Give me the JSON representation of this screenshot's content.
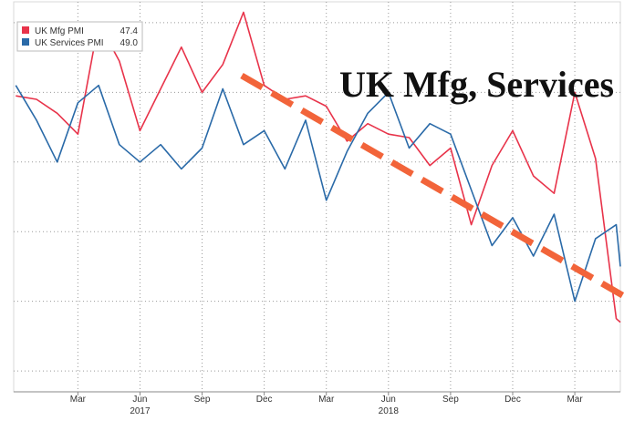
{
  "chart_data": {
    "type": "line",
    "title": "UK Mfg, Services",
    "xlabel": "",
    "ylabel": "",
    "grid": true,
    "legend_position": "top-left",
    "x_ticks": [
      {
        "label": "Mar",
        "t": 2
      },
      {
        "label": "Jun",
        "t": 5
      },
      {
        "label": "Sep",
        "t": 8
      },
      {
        "label": "Dec",
        "t": 11
      },
      {
        "label": "Mar",
        "t": 14
      },
      {
        "label": "Jun",
        "t": 17
      },
      {
        "label": "Sep",
        "t": 20
      },
      {
        "label": "Dec",
        "t": 23
      },
      {
        "label": "Mar",
        "t": 26
      }
    ],
    "year_labels": [
      {
        "label": "2017",
        "t": 5
      },
      {
        "label": "2018",
        "t": 17
      }
    ],
    "x_range": [
      -1.1,
      28.2
    ],
    "ylim": [
      45.4,
      56.6
    ],
    "y_gridlines": [
      46,
      48,
      50,
      52,
      54,
      56
    ],
    "series": [
      {
        "name": "UK Mfg PMI",
        "last_value": "47.4",
        "color": "#e8334a",
        "points": [
          [
            -1,
            53.9
          ],
          [
            0,
            53.8
          ],
          [
            1,
            53.4
          ],
          [
            2,
            52.8
          ],
          [
            3,
            56.0
          ],
          [
            4,
            54.9
          ],
          [
            5,
            52.9
          ],
          [
            6,
            54.1
          ],
          [
            7,
            55.3
          ],
          [
            8,
            54.0
          ],
          [
            9,
            54.8
          ],
          [
            10,
            56.3
          ],
          [
            11,
            54.2
          ],
          [
            12,
            53.8
          ],
          [
            13,
            53.9
          ],
          [
            14,
            53.6
          ],
          [
            15,
            52.6
          ],
          [
            16,
            53.1
          ],
          [
            17,
            52.8
          ],
          [
            18,
            52.7
          ],
          [
            19,
            51.9
          ],
          [
            20,
            52.4
          ],
          [
            21,
            50.2
          ],
          [
            22,
            51.9
          ],
          [
            23,
            52.9
          ],
          [
            24,
            51.6
          ],
          [
            25,
            51.1
          ],
          [
            26,
            54.0
          ],
          [
            27,
            52.1
          ],
          [
            28,
            47.5
          ],
          [
            28.2,
            47.4
          ]
        ]
      },
      {
        "name": "UK Services PMI",
        "last_value": "49.0",
        "color": "#2a6aa8",
        "points": [
          [
            -1,
            54.2
          ],
          [
            0,
            53.2
          ],
          [
            1,
            52.0
          ],
          [
            2,
            53.7
          ],
          [
            3,
            54.2
          ],
          [
            4,
            52.5
          ],
          [
            5,
            52.0
          ],
          [
            6,
            52.5
          ],
          [
            7,
            51.8
          ],
          [
            8,
            52.4
          ],
          [
            9,
            54.1
          ],
          [
            10,
            52.5
          ],
          [
            11,
            52.9
          ],
          [
            12,
            51.8
          ],
          [
            13,
            53.2
          ],
          [
            14,
            50.9
          ],
          [
            15,
            52.3
          ],
          [
            16,
            53.4
          ],
          [
            17,
            54.0
          ],
          [
            18,
            52.4
          ],
          [
            19,
            53.1
          ],
          [
            20,
            52.8
          ],
          [
            21,
            51.2
          ],
          [
            22,
            49.6
          ],
          [
            23,
            50.4
          ],
          [
            24,
            49.3
          ],
          [
            25,
            50.5
          ],
          [
            26,
            48.0
          ],
          [
            27,
            49.8
          ],
          [
            28,
            50.2
          ],
          [
            28.2,
            49.0
          ]
        ]
      }
    ]
  }
}
